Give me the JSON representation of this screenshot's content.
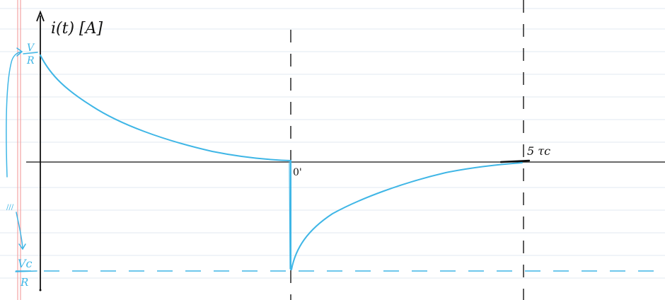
{
  "colors": {
    "paper": "#ffffff",
    "ruled_line": "#e8eef3",
    "margin_line": "#f3a3a3",
    "ink": "#111111",
    "curve": "#3fb6e6",
    "dashes": "#333333"
  },
  "labels": {
    "y_axis": "i(t) [A]",
    "top_value_num": "V",
    "top_value_den": "R",
    "bottom_value_num": "Vc",
    "bottom_value_den": "R",
    "switch_time": "0'",
    "end_time": "5 τc",
    "side_mark": "///"
  }
}
